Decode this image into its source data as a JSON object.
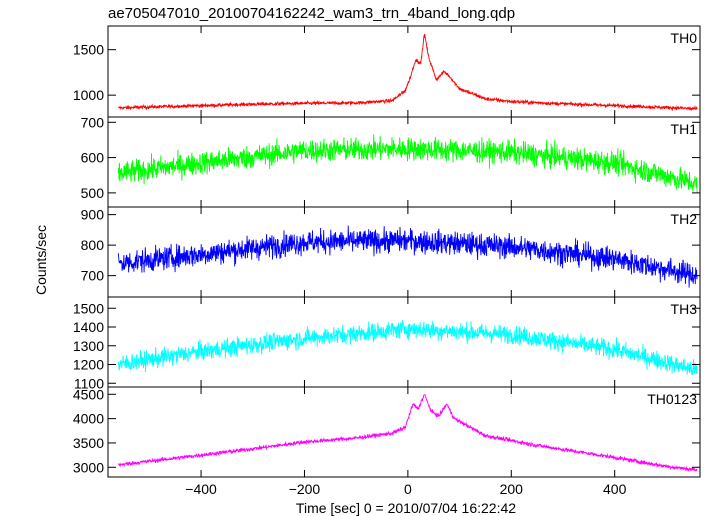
{
  "title": "ae705047010_20100704162242_wam3_trn_4band_long.qdp",
  "ylabel": "Counts/sec",
  "xlabel": "Time [sec] 0 = 2010/07/04 16:22:42",
  "chart_data": [
    {
      "type": "line",
      "panel": "TH0",
      "color": "#ff0000",
      "xlim": [
        -580,
        565
      ],
      "ylim": [
        760,
        1760
      ],
      "xticks": [
        -400,
        -200,
        0,
        200,
        400
      ],
      "yticks": [
        1000,
        1500
      ],
      "points": [
        [
          -560,
          860
        ],
        [
          -500,
          870
        ],
        [
          -400,
          885
        ],
        [
          -300,
          900
        ],
        [
          -200,
          910
        ],
        [
          -100,
          915
        ],
        [
          -30,
          940
        ],
        [
          -5,
          1050
        ],
        [
          5,
          1200
        ],
        [
          15,
          1390
        ],
        [
          25,
          1350
        ],
        [
          32,
          1680
        ],
        [
          40,
          1420
        ],
        [
          55,
          1170
        ],
        [
          70,
          1260
        ],
        [
          80,
          1210
        ],
        [
          100,
          1070
        ],
        [
          150,
          960
        ],
        [
          200,
          930
        ],
        [
          300,
          905
        ],
        [
          400,
          885
        ],
        [
          500,
          865
        ],
        [
          560,
          850
        ]
      ],
      "noise": 18
    },
    {
      "type": "line",
      "panel": "TH1",
      "color": "#00ff00",
      "xlim": [
        -580,
        565
      ],
      "ylim": [
        460,
        715
      ],
      "xticks": [
        -400,
        -200,
        0,
        200,
        400
      ],
      "yticks": [
        500,
        600,
        700
      ],
      "points": [
        [
          -560,
          555
        ],
        [
          -400,
          585
        ],
        [
          -200,
          620
        ],
        [
          0,
          625
        ],
        [
          200,
          615
        ],
        [
          400,
          585
        ],
        [
          560,
          525
        ]
      ],
      "noise": 32
    },
    {
      "type": "line",
      "panel": "TH2",
      "color": "#0000ff",
      "xlim": [
        -580,
        565
      ],
      "ylim": [
        630,
        925
      ],
      "xticks": [
        -400,
        -200,
        0,
        200,
        400
      ],
      "yticks": [
        700,
        800,
        900
      ],
      "points": [
        [
          -560,
          740
        ],
        [
          -400,
          770
        ],
        [
          -200,
          810
        ],
        [
          0,
          815
        ],
        [
          200,
          795
        ],
        [
          400,
          755
        ],
        [
          560,
          700
        ]
      ],
      "noise": 38
    },
    {
      "type": "line",
      "panel": "TH3",
      "color": "#00ffff",
      "xlim": [
        -580,
        565
      ],
      "ylim": [
        1080,
        1560
      ],
      "xticks": [
        -400,
        -200,
        0,
        200,
        400
      ],
      "yticks": [
        1100,
        1200,
        1300,
        1400,
        1500
      ],
      "points": [
        [
          -560,
          1200
        ],
        [
          -400,
          1270
        ],
        [
          -200,
          1340
        ],
        [
          0,
          1390
        ],
        [
          200,
          1360
        ],
        [
          400,
          1280
        ],
        [
          560,
          1170
        ]
      ],
      "noise": 48
    },
    {
      "type": "line",
      "panel": "TH0123",
      "color": "#ff00ff",
      "xlim": [
        -580,
        565
      ],
      "ylim": [
        2800,
        4650
      ],
      "xticks": [
        -400,
        -200,
        0,
        200,
        400
      ],
      "yticks": [
        3000,
        3500,
        4000,
        4500
      ],
      "points": [
        [
          -560,
          3050
        ],
        [
          -400,
          3250
        ],
        [
          -300,
          3380
        ],
        [
          -200,
          3520
        ],
        [
          -100,
          3600
        ],
        [
          -30,
          3700
        ],
        [
          -5,
          3820
        ],
        [
          10,
          4300
        ],
        [
          20,
          4200
        ],
        [
          32,
          4500
        ],
        [
          45,
          4150
        ],
        [
          60,
          4050
        ],
        [
          75,
          4300
        ],
        [
          90,
          4000
        ],
        [
          150,
          3650
        ],
        [
          250,
          3450
        ],
        [
          400,
          3200
        ],
        [
          500,
          3020
        ],
        [
          560,
          2940
        ]
      ],
      "noise": 40
    }
  ]
}
